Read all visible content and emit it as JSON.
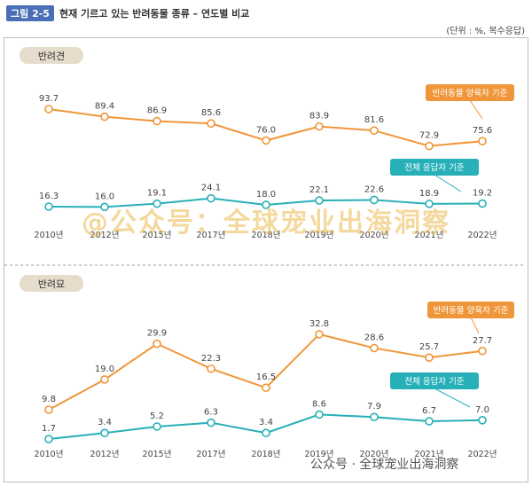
{
  "header": {
    "figure_tag": "그림 2-5",
    "title": "현재 기르고 있는 반려동물 종류 – 연도별 비교",
    "unit": "(단위 : %, 복수응답)"
  },
  "legend": {
    "owner_label": "반려동물 양육자 기준",
    "all_label": "전체 응답자 기준"
  },
  "watermark": "@公众号：全球宠业出海洞察",
  "footer_mark": "公众号 · 全球宠业出海洞察",
  "colors": {
    "owner": "#f0963a",
    "all": "#27b0b8",
    "panel_label_bg": "#e6dccb",
    "dashed": "#999999"
  },
  "chart_data": [
    {
      "type": "line",
      "panel_label": "반려견",
      "categories": [
        "2010년",
        "2012년",
        "2015년",
        "2017년",
        "2018년",
        "2019년",
        "2020년",
        "2021년",
        "2022년"
      ],
      "series": [
        {
          "name": "반려동물 양육자 기준",
          "values": [
            93.7,
            89.4,
            86.9,
            85.6,
            76.0,
            83.9,
            81.6,
            72.9,
            75.6
          ],
          "labels": [
            "93.7",
            "89.4",
            "86.9",
            "85.6",
            "76.0",
            "83.9",
            "81.6",
            "72.9",
            "75.6"
          ]
        },
        {
          "name": "전체 응답자 기준",
          "values": [
            16.3,
            16.0,
            19.1,
            24.1,
            18.0,
            22.1,
            22.6,
            18.9,
            19.2
          ],
          "labels": [
            "16.3",
            "16.0",
            "19.1",
            "24.1",
            "18.0",
            "22.1",
            "22.6",
            "18.9",
            "19.2"
          ]
        }
      ],
      "grid": false
    },
    {
      "type": "line",
      "panel_label": "반려묘",
      "categories": [
        "2010년",
        "2012년",
        "2015년",
        "2017년",
        "2018년",
        "2019년",
        "2020년",
        "2021년",
        "2022년"
      ],
      "series": [
        {
          "name": "반려동물 양육자 기준",
          "values": [
            9.8,
            19.0,
            29.9,
            22.3,
            16.5,
            32.8,
            28.6,
            25.7,
            27.7
          ],
          "labels": [
            "9.8",
            "19.0",
            "29.9",
            "22.3",
            "16.5",
            "32.8",
            "28.6",
            "25.7",
            "27.7"
          ]
        },
        {
          "name": "전체 응답자 기준",
          "values": [
            1.7,
            3.4,
            5.2,
            6.3,
            3.4,
            8.6,
            7.9,
            6.7,
            7.0
          ],
          "labels": [
            "1.7",
            "3.4",
            "5.2",
            "6.3",
            "3.4",
            "8.6",
            "7.9",
            "6.7",
            "7.0"
          ]
        }
      ],
      "grid": false
    }
  ]
}
